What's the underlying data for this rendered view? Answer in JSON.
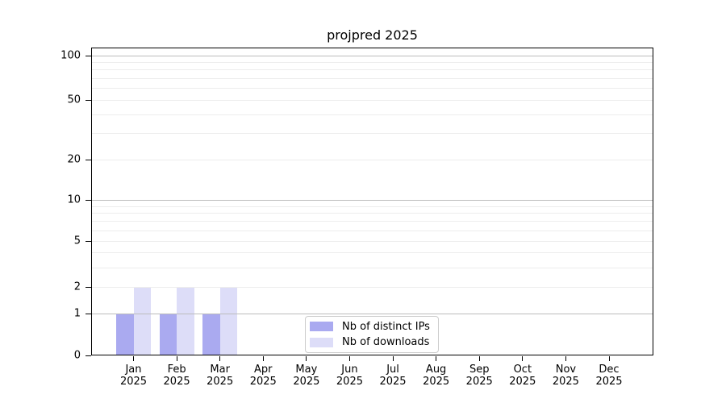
{
  "chart_data": {
    "type": "bar",
    "title": "projpred 2025",
    "categories": [
      "Jan 2025",
      "Feb 2025",
      "Mar 2025",
      "Apr 2025",
      "May 2025",
      "Jun 2025",
      "Jul 2025",
      "Aug 2025",
      "Sep 2025",
      "Oct 2025",
      "Nov 2025",
      "Dec 2025"
    ],
    "series": [
      {
        "name": "Nb of distinct IPs",
        "color": "#aaaaf0",
        "values": [
          1,
          1,
          1,
          0,
          0,
          0,
          0,
          0,
          0,
          0,
          0,
          0
        ]
      },
      {
        "name": "Nb of downloads",
        "color": "#ddddf8",
        "values": [
          2,
          2,
          2,
          0,
          0,
          0,
          0,
          0,
          0,
          0,
          0,
          0
        ]
      }
    ],
    "xlabel": "",
    "ylabel": "",
    "yscale": "log1p",
    "ylim": [
      0,
      114
    ],
    "yticks": [
      0,
      1,
      2,
      5,
      10,
      20,
      50,
      100
    ],
    "major_gridlines": [
      1,
      10,
      100
    ],
    "minor_gridlines": [
      2,
      3,
      4,
      5,
      6,
      7,
      8,
      9,
      20,
      30,
      40,
      50,
      60,
      70,
      80,
      90
    ],
    "grid": true,
    "legend_position": "lower center (inside plot)"
  },
  "colors": {
    "background": "#ffffff",
    "axis": "#000000",
    "text": "#000000",
    "grid_major": "#bcbcbc",
    "grid_minor": "#ededed",
    "legend_border": "#cccccc"
  }
}
